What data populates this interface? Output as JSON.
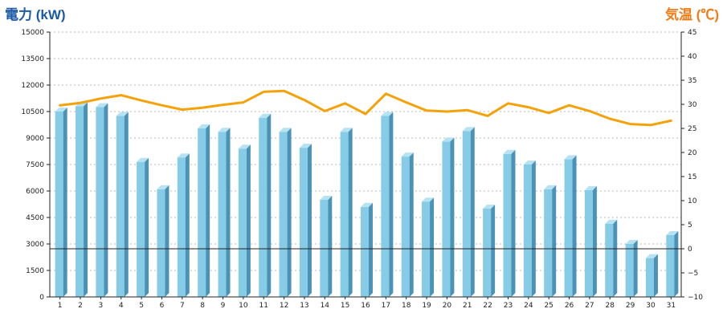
{
  "chart_data": {
    "type": "bar",
    "left_axis_title": "電力 (kW)",
    "right_axis_title": "気温 (℃)",
    "categories": [
      "1",
      "2",
      "3",
      "4",
      "5",
      "6",
      "7",
      "8",
      "9",
      "10",
      "11",
      "12",
      "13",
      "14",
      "15",
      "16",
      "17",
      "18",
      "19",
      "20",
      "21",
      "22",
      "23",
      "24",
      "25",
      "26",
      "27",
      "28",
      "29",
      "30",
      "31"
    ],
    "series": [
      {
        "axis": "left",
        "type": "bar",
        "values": [
          10500,
          10800,
          10750,
          10250,
          7650,
          6100,
          7900,
          9550,
          9350,
          8400,
          10150,
          9350,
          8450,
          5500,
          9350,
          5100,
          10250,
          7950,
          5400,
          8800,
          9400,
          5000,
          8100,
          7500,
          6100,
          7800,
          6050,
          4150,
          3000,
          2200,
          3500
        ]
      },
      {
        "axis": "right",
        "type": "line",
        "values": [
          29.8,
          30.3,
          31.2,
          31.9,
          30.8,
          29.8,
          28.9,
          29.3,
          29.9,
          30.4,
          32.6,
          32.8,
          30.9,
          28.6,
          30.2,
          28.0,
          32.2,
          30.4,
          28.7,
          28.5,
          28.8,
          27.6,
          30.2,
          29.4,
          28.2,
          29.8,
          28.6,
          27.0,
          25.9,
          25.7,
          26.6
        ]
      }
    ],
    "left_axis": {
      "min": 0,
      "max": 15000,
      "ticks": [
        0,
        1500,
        3000,
        4500,
        6000,
        7500,
        9000,
        10500,
        12000,
        13500,
        15000
      ]
    },
    "right_axis": {
      "min": -10,
      "max": 45,
      "ticks": [
        -10,
        -5,
        0,
        5,
        10,
        15,
        20,
        25,
        30,
        35,
        40,
        45
      ]
    },
    "reference_line": {
      "axis": "right",
      "value": 0
    },
    "grid": true,
    "colors": {
      "left_title": "#1a5aa6",
      "right_title": "#f07c16",
      "bar_front": "#87cce6",
      "bar_side": "#4a93b6",
      "bar_top": "#b7e2f2",
      "line": "#f5a20a",
      "grid": "#bbbbbb",
      "axis": "#222222",
      "reference": "#222222"
    }
  }
}
